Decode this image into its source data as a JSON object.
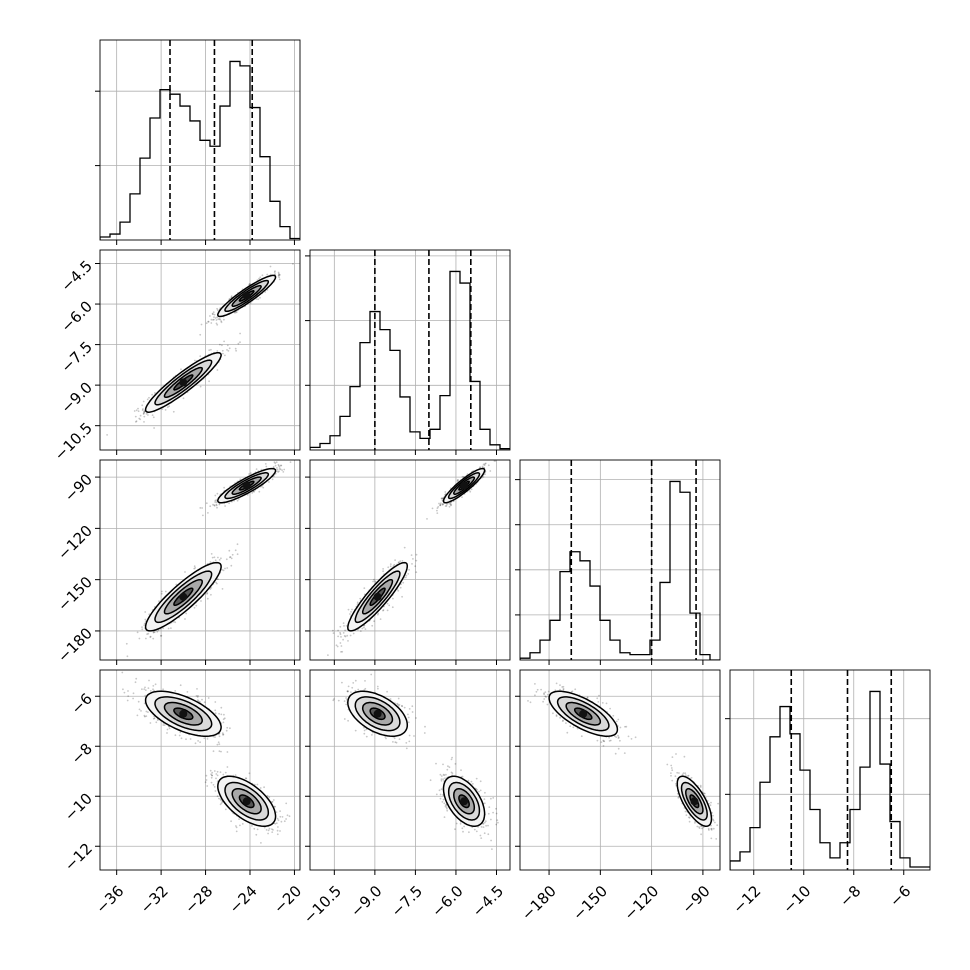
{
  "chart_data": {
    "type": "corner",
    "grid": true,
    "n_params": 4,
    "params": [
      {
        "index": 0,
        "range": [
          -37.5,
          -19.5
        ],
        "ticks": [
          -36,
          -32,
          -28,
          -24,
          -20
        ],
        "tick_labels": [
          "−36",
          "−32",
          "−28",
          "−24",
          "−20"
        ],
        "quantile_lines": [
          -31.2,
          -27.2,
          -23.8
        ],
        "hist_edges_start": -37.5,
        "hist_bin_width": 0.9,
        "hist_values": [
          0.2,
          0.4,
          1.2,
          3.1,
          5.5,
          8.2,
          10.1,
          9.8,
          9.0,
          8.0,
          6.7,
          6.3,
          9.0,
          12.0,
          11.7,
          8.9,
          5.6,
          2.6,
          0.9,
          0.1
        ]
      },
      {
        "index": 1,
        "range": [
          -11.4,
          -4.0
        ],
        "ticks": [
          -10.5,
          -9.0,
          -7.5,
          -6.0,
          -4.5
        ],
        "tick_labels": [
          "−10.5",
          "−9.0",
          "−7.5",
          "−6.0",
          "−4.5"
        ],
        "quantile_lines": [
          -9.0,
          -7.0,
          -5.45
        ],
        "hist_edges_start": -11.4,
        "hist_bin_width": 0.37,
        "hist_values": [
          0.2,
          0.5,
          1.1,
          2.6,
          4.9,
          8.3,
          10.7,
          9.3,
          7.7,
          4.1,
          1.4,
          0.9,
          1.6,
          4.2,
          13.8,
          12.9,
          5.3,
          1.6,
          0.4,
          0.1
        ]
      },
      {
        "index": 2,
        "range": [
          -197,
          -80
        ],
        "ticks": [
          -180,
          -150,
          -120,
          -90
        ],
        "tick_labels": [
          "−180",
          "−150",
          "−120",
          "−90"
        ],
        "quantile_lines": [
          -167,
          -120,
          -94
        ],
        "hist_edges_start": -197,
        "hist_bin_width": 5.85,
        "hist_values": [
          0.1,
          0.4,
          1.1,
          2.2,
          4.9,
          6.0,
          5.5,
          4.1,
          2.2,
          1.1,
          0.4,
          0.3,
          0.3,
          1.1,
          4.3,
          9.9,
          9.3,
          2.6,
          0.3,
          0.0
        ]
      },
      {
        "index": 3,
        "range": [
          -12.95,
          -4.95
        ],
        "ticks": [
          -12,
          -10,
          -8,
          -6
        ],
        "tick_labels": [
          "−12",
          "−10",
          "−8",
          "−6"
        ],
        "quantile_lines": [
          -10.5,
          -8.25,
          -6.5
        ],
        "hist_edges_start": -12.95,
        "hist_bin_width": 0.4,
        "hist_values": [
          0.3,
          0.6,
          1.4,
          2.9,
          4.4,
          5.4,
          4.5,
          3.3,
          2.0,
          0.9,
          0.4,
          0.9,
          2.0,
          3.4,
          5.9,
          3.5,
          1.6,
          0.4,
          0.1,
          0.1
        ]
      }
    ],
    "modes": [
      {
        "center": [
          -30.0,
          -8.9,
          -160,
          -6.7
        ],
        "sd": [
          1.7,
          0.55,
          10,
          0.45
        ],
        "weight": 0.5
      },
      {
        "center": [
          -24.3,
          -5.7,
          -95,
          -10.2
        ],
        "sd": [
          1.3,
          0.38,
          5,
          0.5
        ],
        "weight": 0.5
      }
    ],
    "correlations": {
      "0-1": 0.92,
      "0-2": 0.88,
      "1-2": 0.9,
      "0-3": -0.6,
      "1-3": -0.5,
      "2-3": -0.7
    }
  }
}
